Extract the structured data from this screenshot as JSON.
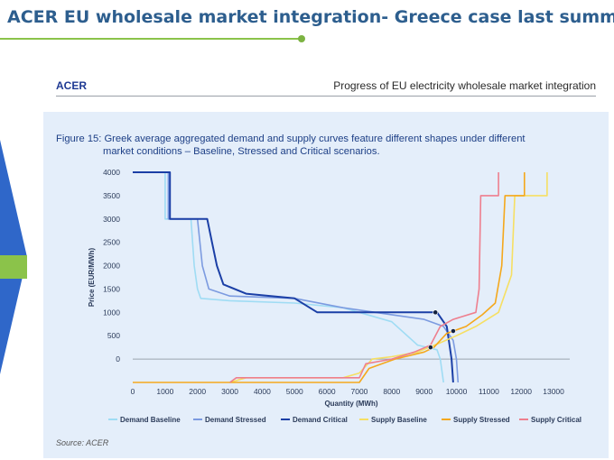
{
  "slide": {
    "title": "ACER EU wholesale market integration- Greece case last summer"
  },
  "report": {
    "logo": "ACER",
    "title": "Progress of EU electricity wholesale market integration"
  },
  "figure": {
    "caption_line1": "Figure 15:  Greek average aggregated demand and supply curves feature different shapes under different",
    "caption_line2": "market conditions – Baseline, Stressed and Critical scenarios.",
    "source": "Source: ACER"
  },
  "colors": {
    "demand_baseline": "#9fdcf4",
    "demand_stressed": "#7c9be0",
    "demand_critical": "#1b3fa6",
    "supply_baseline": "#f6df63",
    "supply_stressed": "#f4a81c",
    "supply_critical": "#ee7f8e"
  },
  "chart_data": {
    "type": "line",
    "xlabel": "Quantity (MWh)",
    "ylabel": "Price (EUR/MWh)",
    "xlim": [
      0,
      13500
    ],
    "ylim": [
      -500,
      4000
    ],
    "x_ticks": [
      0,
      1000,
      2000,
      3000,
      4000,
      5000,
      6000,
      7000,
      8000,
      9000,
      10000,
      11000,
      12000,
      13000
    ],
    "y_ticks": [
      0,
      500,
      1000,
      1500,
      2000,
      2500,
      3000,
      3500,
      4000
    ],
    "legend_position": "bottom",
    "series": [
      {
        "name": "Demand Baseline",
        "color_key": "demand_baseline",
        "points": [
          [
            0,
            4000
          ],
          [
            1000,
            4000
          ],
          [
            1000,
            3000
          ],
          [
            1800,
            3000
          ],
          [
            1900,
            2000
          ],
          [
            2000,
            1500
          ],
          [
            2100,
            1300
          ],
          [
            3000,
            1250
          ],
          [
            5000,
            1200
          ],
          [
            6500,
            1100
          ],
          [
            8000,
            800
          ],
          [
            8800,
            300
          ],
          [
            9400,
            200
          ],
          [
            9500,
            0
          ],
          [
            9600,
            -500
          ]
        ]
      },
      {
        "name": "Demand Stressed",
        "color_key": "demand_stressed",
        "points": [
          [
            0,
            4000
          ],
          [
            1100,
            4000
          ],
          [
            1100,
            3000
          ],
          [
            2000,
            3000
          ],
          [
            2150,
            2000
          ],
          [
            2350,
            1500
          ],
          [
            3000,
            1350
          ],
          [
            5000,
            1300
          ],
          [
            6500,
            1100
          ],
          [
            8000,
            950
          ],
          [
            9000,
            850
          ],
          [
            9600,
            700
          ],
          [
            9900,
            400
          ],
          [
            10000,
            0
          ],
          [
            10050,
            -500
          ]
        ]
      },
      {
        "name": "Demand Critical",
        "color_key": "demand_critical",
        "points": [
          [
            0,
            4000
          ],
          [
            1150,
            4000
          ],
          [
            1150,
            3000
          ],
          [
            2300,
            3000
          ],
          [
            2450,
            2500
          ],
          [
            2600,
            2000
          ],
          [
            2800,
            1600
          ],
          [
            3500,
            1400
          ],
          [
            5000,
            1300
          ],
          [
            5700,
            1000
          ],
          [
            7000,
            1000
          ],
          [
            9400,
            1000
          ],
          [
            9700,
            700
          ],
          [
            9850,
            0
          ],
          [
            9900,
            -500
          ]
        ]
      },
      {
        "name": "Supply Baseline",
        "color_key": "supply_baseline",
        "points": [
          [
            3000,
            -500
          ],
          [
            3500,
            -400
          ],
          [
            6500,
            -400
          ],
          [
            7000,
            -300
          ],
          [
            7400,
            0
          ],
          [
            8000,
            50
          ],
          [
            8800,
            150
          ],
          [
            9500,
            350
          ],
          [
            10000,
            500
          ],
          [
            10600,
            700
          ],
          [
            11300,
            1000
          ],
          [
            11700,
            1800
          ],
          [
            11800,
            3500
          ],
          [
            12800,
            3500
          ],
          [
            12800,
            4000
          ]
        ]
      },
      {
        "name": "Supply Stressed",
        "color_key": "supply_stressed",
        "points": [
          [
            0,
            -500
          ],
          [
            7000,
            -500
          ],
          [
            7300,
            -200
          ],
          [
            7700,
            -100
          ],
          [
            8100,
            0
          ],
          [
            9000,
            150
          ],
          [
            9300,
            250
          ],
          [
            9700,
            550
          ],
          [
            10300,
            700
          ],
          [
            10800,
            950
          ],
          [
            11200,
            1200
          ],
          [
            11400,
            2000
          ],
          [
            11500,
            3500
          ],
          [
            12100,
            3500
          ],
          [
            12100,
            4000
          ]
        ]
      },
      {
        "name": "Supply Critical",
        "color_key": "supply_critical",
        "points": [
          [
            3000,
            -500
          ],
          [
            3200,
            -400
          ],
          [
            7000,
            -400
          ],
          [
            7200,
            -100
          ],
          [
            8000,
            0
          ],
          [
            8700,
            150
          ],
          [
            9200,
            300
          ],
          [
            9500,
            700
          ],
          [
            9900,
            850
          ],
          [
            10600,
            1000
          ],
          [
            10700,
            1500
          ],
          [
            10750,
            3500
          ],
          [
            11300,
            3500
          ],
          [
            11300,
            4000
          ]
        ]
      }
    ],
    "intersections": [
      [
        9350,
        1000
      ],
      [
        9900,
        600
      ],
      [
        9200,
        250
      ]
    ]
  }
}
